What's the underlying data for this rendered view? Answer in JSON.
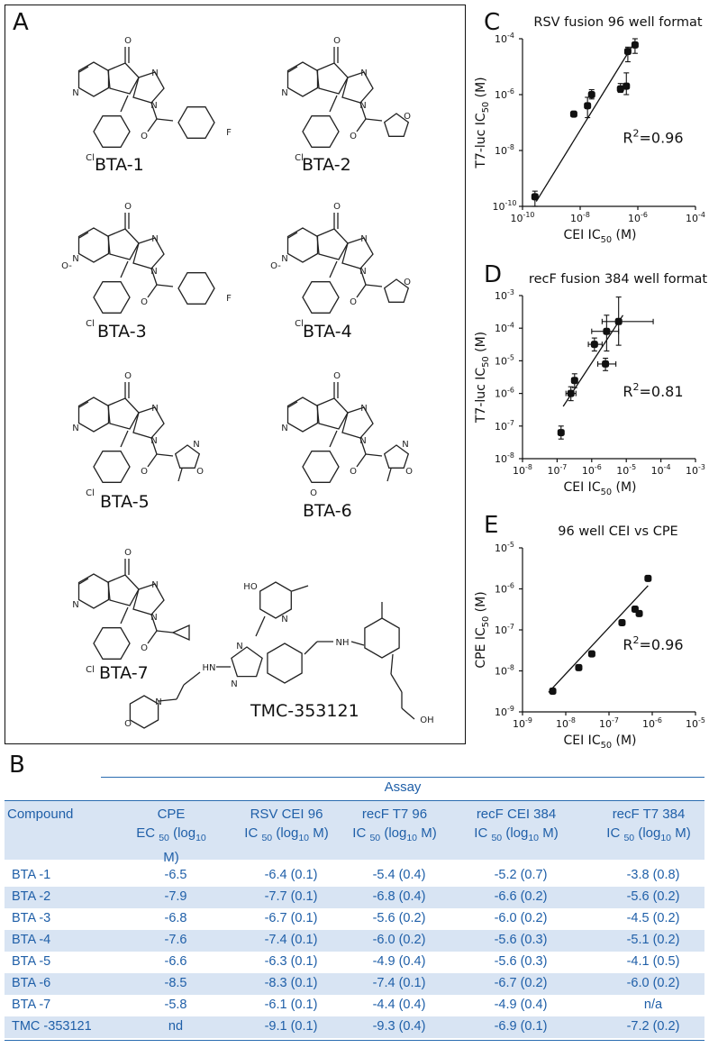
{
  "panel_letters": {
    "a": "A",
    "b": "B",
    "c": "C",
    "d": "D",
    "e": "E"
  },
  "compounds": {
    "c1": "BTA-1",
    "c2": "BTA-2",
    "c3": "BTA-3",
    "c4": "BTA-4",
    "c5": "BTA-5",
    "c6": "BTA-6",
    "c7": "BTA-7",
    "c8": "TMC-353121"
  },
  "chem_atoms": {
    "n": "N",
    "o": "O",
    "cl": "Cl",
    "f": "F",
    "nplus": "N",
    "ominus": "O",
    "hn": "HN",
    "nh": "NH",
    "ho": "HO",
    "oh": "OH",
    "plus": "+",
    "minus": "-"
  },
  "chart_data": [
    {
      "type": "scatter",
      "title": "RSV fusion 96 well format",
      "xlabel": "CEI IC50 (M)",
      "ylabel": "T7-luc IC50 (M)",
      "x_scale": "log",
      "y_scale": "log",
      "xlim": [
        1e-10,
        0.0001
      ],
      "ylim": [
        1e-10,
        0.0001
      ],
      "x_ticks": [
        "10-10",
        "10-8",
        "10-6",
        "10-4"
      ],
      "y_ticks": [
        "10-10",
        "10-8",
        "10-6",
        "10-4"
      ],
      "annotation": "R2=0.96",
      "points": [
        {
          "x": 2.7e-10,
          "y": 2.2e-10,
          "yerr": [
            1e-10,
            3.5e-10
          ]
        },
        {
          "x": 6e-09,
          "y": 2e-07
        },
        {
          "x": 1.8e-08,
          "y": 4e-07,
          "yerr": [
            1.5e-07,
            8e-07
          ]
        },
        {
          "x": 2.5e-08,
          "y": 1e-06,
          "yerr": [
            7e-07,
            1.5e-06
          ]
        },
        {
          "x": 2.5e-07,
          "y": 1.6e-06,
          "yerr": [
            1.2e-06,
            2.5e-06
          ]
        },
        {
          "x": 4e-07,
          "y": 2e-06,
          "yerr": [
            1e-06,
            6e-06
          ]
        },
        {
          "x": 4.5e-07,
          "y": 3.5e-05,
          "yerr": [
            1.5e-05,
            5e-05
          ]
        },
        {
          "x": 8e-07,
          "y": 6e-05,
          "yerr": [
            3e-05,
            0.0001
          ]
        }
      ],
      "fit": {
        "x": [
          3e-10,
          8e-07
        ],
        "y": [
          1.5e-10,
          8e-05
        ]
      }
    },
    {
      "type": "scatter",
      "title": "recF fusion 384 well format",
      "xlabel": "CEI IC50 (M)",
      "ylabel": "T7-luc IC50 (M)",
      "x_scale": "log",
      "y_scale": "log",
      "xlim": [
        1e-08,
        0.001
      ],
      "ylim": [
        1e-08,
        0.001
      ],
      "x_ticks": [
        "10-8",
        "10-7",
        "10-6",
        "10-5",
        "10-4",
        "10-3"
      ],
      "y_ticks": [
        "10-8",
        "10-7",
        "10-6",
        "10-5",
        "10-4",
        "10-3"
      ],
      "annotation": "R2=0.81",
      "points": [
        {
          "x": 1.3e-07,
          "y": 6.3e-08,
          "yerr": [
            4e-08,
            1e-07
          ]
        },
        {
          "x": 2.5e-07,
          "y": 1e-06,
          "yerr": [
            6e-07,
            1.6e-06
          ],
          "xerr": [
            1.8e-07,
            3.5e-07
          ]
        },
        {
          "x": 3.2e-07,
          "y": 2.5e-06,
          "yerr": [
            1.5e-06,
            4e-06
          ]
        },
        {
          "x": 1.2e-06,
          "y": 3.2e-05,
          "yerr": [
            2e-05,
            5e-05
          ],
          "xerr": [
            8e-07,
            2e-06
          ]
        },
        {
          "x": 2.5e-06,
          "y": 8e-06,
          "yerr": [
            5e-06,
            1.2e-05
          ],
          "xerr": [
            1.5e-06,
            5e-06
          ]
        },
        {
          "x": 2.7e-06,
          "y": 8e-05,
          "yerr": [
            2e-05,
            0.00025
          ],
          "xerr": [
            1e-06,
            6e-06
          ]
        },
        {
          "x": 6e-06,
          "y": 0.00016,
          "yerr": [
            3e-05,
            0.0009
          ],
          "xerr": [
            2e-06,
            6e-05
          ]
        }
      ],
      "fit": {
        "x": [
          1.5e-07,
          8e-06
        ],
        "y": [
          4e-07,
          0.00025
        ]
      }
    },
    {
      "type": "scatter",
      "title": "96 well CEI vs CPE",
      "xlabel": "CEI IC50 (M)",
      "ylabel": "CPE IC50 (M)",
      "x_scale": "log",
      "y_scale": "log",
      "xlim": [
        1e-09,
        1e-05
      ],
      "ylim": [
        1e-09,
        1e-05
      ],
      "x_ticks": [
        "10-9",
        "10-8",
        "10-7",
        "10-6",
        "10-5"
      ],
      "y_ticks": [
        "10-9",
        "10-8",
        "10-7",
        "10-6",
        "10-5"
      ],
      "annotation": "R2=0.96",
      "points": [
        {
          "x": 5e-09,
          "y": 3.2e-09
        },
        {
          "x": 2e-08,
          "y": 1.2e-08
        },
        {
          "x": 4e-08,
          "y": 2.6e-08
        },
        {
          "x": 2e-07,
          "y": 1.5e-07
        },
        {
          "x": 4e-07,
          "y": 3.2e-07
        },
        {
          "x": 5e-07,
          "y": 2.5e-07
        },
        {
          "x": 8e-07,
          "y": 1.8e-06
        }
      ],
      "fit": {
        "x": [
          4e-09,
          8e-07
        ],
        "y": [
          3e-09,
          1.2e-06
        ]
      }
    }
  ],
  "table": {
    "assay": "Assay",
    "headers": [
      {
        "l1": "Compound",
        "l2": ""
      },
      {
        "l1": "CPE",
        "l2": "EC 50 (log10 M)"
      },
      {
        "l1": "RSV CEI 96",
        "l2": "IC 50 (log10 M)"
      },
      {
        "l1": "recF  T7 96",
        "l2": "IC 50 (log10 M)"
      },
      {
        "l1": "recF  CEI 384",
        "l2": "IC 50 (log10 M)"
      },
      {
        "l1": "recF  T7  384",
        "l2": "IC 50 (log10 M)"
      }
    ],
    "rows": [
      [
        "BTA -1",
        "-6.5",
        "-6.4 (0.1)",
        "-5.4 (0.4)",
        "-5.2 (0.7)",
        "-3.8 (0.8)"
      ],
      [
        "BTA -2",
        "-7.9",
        "-7.7 (0.1)",
        "-6.8 (0.4)",
        "-6.6 (0.2)",
        "-5.6  (0.2)"
      ],
      [
        "BTA -3",
        "-6.8",
        "-6.7 (0.1)",
        "-5.6 (0.2)",
        "-6.0 (0.2)",
        "-4.5 (0.2)"
      ],
      [
        "BTA -4",
        "-7.6",
        "-7.4 (0.1)",
        "-6.0 (0.2)",
        "-5.6 (0.3)",
        "-5.1 (0.2)"
      ],
      [
        "BTA -5",
        "-6.6",
        "-6.3 (0.1)",
        "-4.9 (0.4)",
        "-5.6 (0.3)",
        "-4.1 (0.5)"
      ],
      [
        "BTA -6",
        "-8.5",
        "-8.3 (0.1)",
        "-7.4 (0.1)",
        "-6.7 (0.2)",
        "-6.0 (0.2)"
      ],
      [
        "BTA -7",
        "-5.8",
        "-6.1 (0.1)",
        "-4.4 (0.4)",
        "-4.9 (0.4)",
        "n/a"
      ],
      [
        "TMC -353121",
        "nd",
        "-9.1 (0.1)",
        "-9.3 (0.4)",
        "-6.9 (0.1)",
        "-7.2 (0.2)"
      ]
    ]
  }
}
